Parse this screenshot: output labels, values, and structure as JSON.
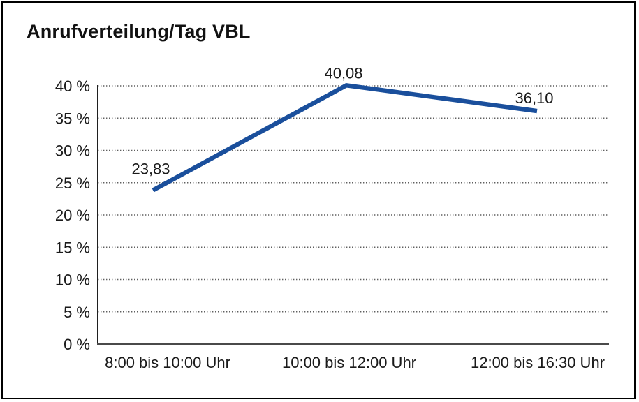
{
  "chart_data": {
    "type": "line",
    "title": "Anrufverteilung/Tag VBL",
    "categories": [
      "8:00 bis 10:00 Uhr",
      "10:00 bis 12:00 Uhr",
      "12:00 bis 16:30 Uhr"
    ],
    "series": [
      {
        "values": [
          23.83,
          40.08,
          36.1
        ]
      }
    ],
    "data_labels": [
      "23,83",
      "40,08",
      "36,10"
    ],
    "xlabel": "",
    "ylabel": "",
    "ylim": [
      0,
      40
    ],
    "ytick_step": 5,
    "ytick_labels": [
      "0 %",
      "5 %",
      "10 %",
      "15 %",
      "20 %",
      "25 %",
      "30 %",
      "35 %",
      "40 %"
    ],
    "grid": "horizontal-dotted",
    "legend_position": "none",
    "colors": {
      "line": "#1a4f9c",
      "text": "#1a1a1a",
      "grid": "#5f5f5f",
      "axis_y": "#1f1f1f",
      "axis_x": "#4a4a4a",
      "border": "#000000",
      "background": "#ffffff"
    }
  }
}
